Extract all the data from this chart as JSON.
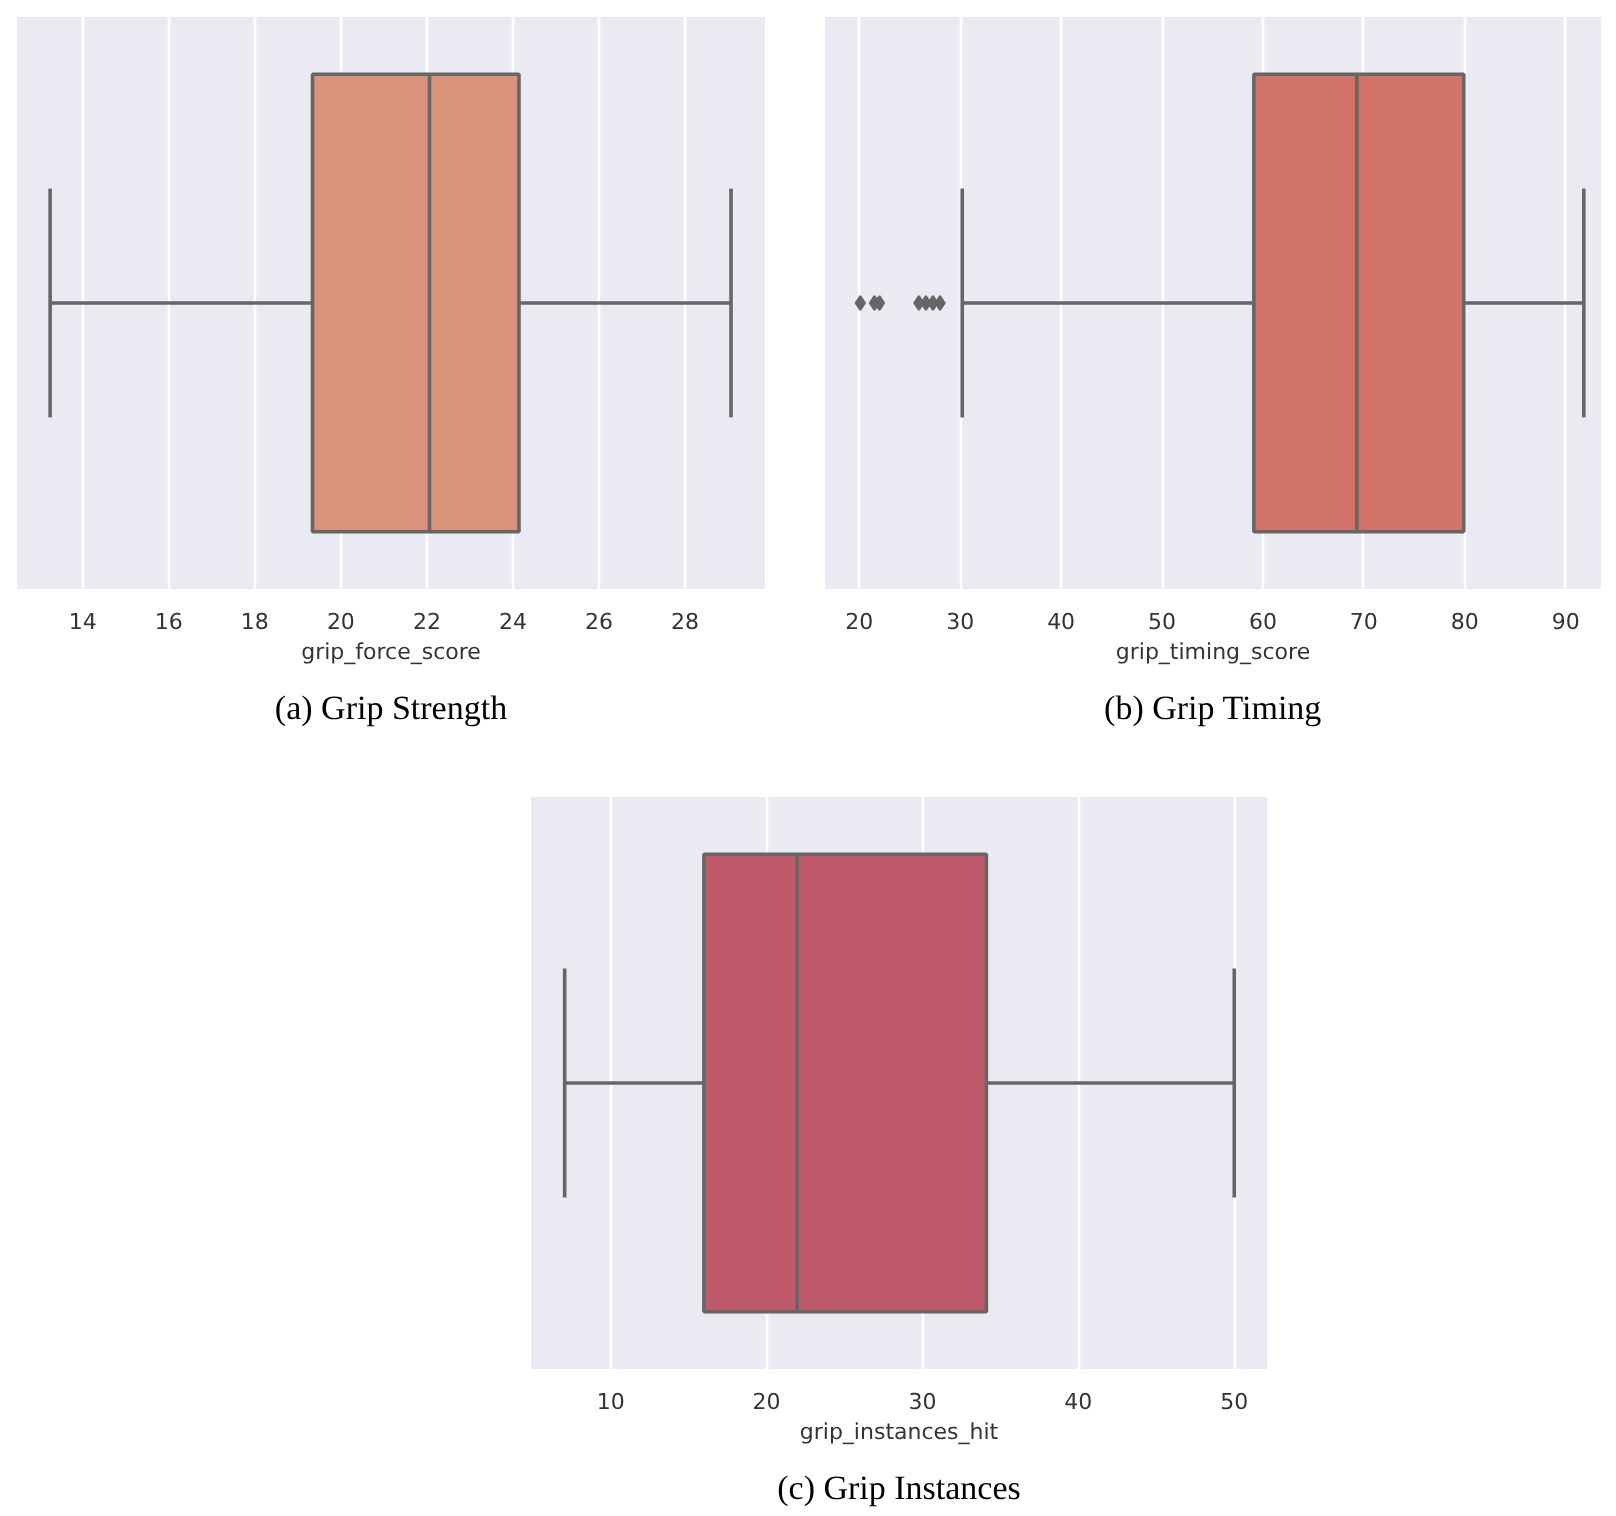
{
  "chart_data": [
    {
      "type": "box",
      "title": "(a) Grip Strength",
      "xlabel": "grip_force_score",
      "categories": [
        null
      ],
      "color": "#d9937a",
      "orientation": "horizontal",
      "xlim": [
        12.47,
        29.86
      ],
      "xticks": [
        14,
        16,
        18,
        20,
        22,
        24,
        26,
        28
      ],
      "grid": "x",
      "tick_labels": "x",
      "marker": "diamond",
      "boxes": [
        {
          "low": 13.24,
          "q1": 19.34,
          "median": 22.06,
          "q3": 24.14,
          "high": 29.07
        }
      ]
    },
    {
      "type": "box",
      "title": "(b) Grip Timing",
      "xlabel": "grip_timing_score",
      "categories": [
        null
      ],
      "color": "#d2736a",
      "orientation": "horizontal",
      "xlim": [
        16.6,
        93.5
      ],
      "xticks": [
        20,
        30,
        40,
        50,
        60,
        70,
        80,
        90
      ],
      "grid": "x",
      "tick_labels": "x",
      "marker": "diamond",
      "boxes": [
        {
          "low": 30.2,
          "q1": 59.1,
          "median": 69.3,
          "q3": 79.9,
          "high": 91.8,
          "outliers": [
            20.1,
            21.5,
            22.0,
            25.9,
            26.6,
            27.3,
            28.0
          ]
        }
      ]
    },
    {
      "type": "box",
      "title": "(c) Grip Instances",
      "xlabel": "grip_instances_hit",
      "categories": [
        null
      ],
      "color": "#c05a6b",
      "orientation": "horizontal",
      "xlim": [
        4.89,
        52.1
      ],
      "xticks": [
        10,
        20,
        30,
        40,
        50
      ],
      "grid": "x",
      "tick_labels": "x",
      "marker": "diamond",
      "boxes": [
        {
          "low": 7.05,
          "q1": 15.98,
          "median": 21.96,
          "q3": 34.1,
          "high": 50
        }
      ]
    }
  ]
}
